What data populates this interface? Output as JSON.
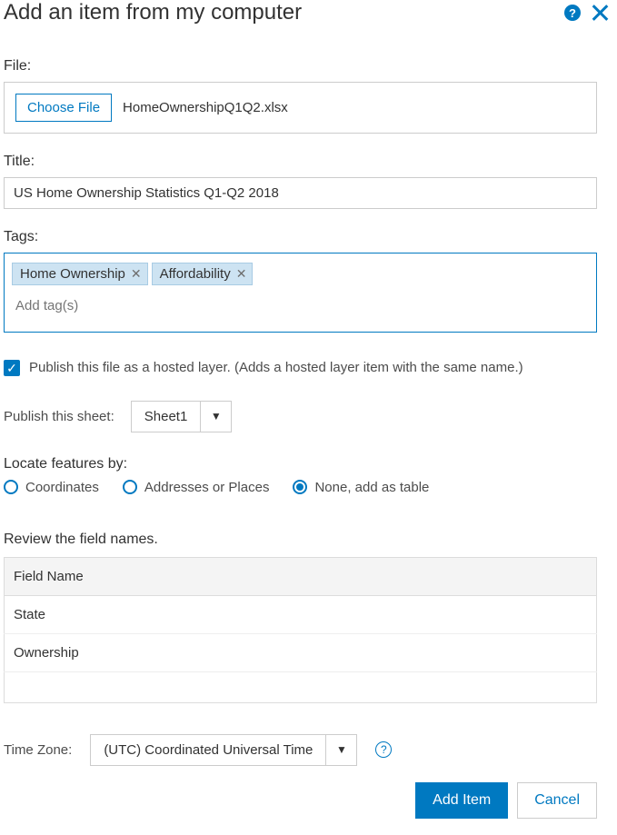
{
  "dialog": {
    "title": "Add an item from my computer"
  },
  "file": {
    "label": "File:",
    "choose_label": "Choose File",
    "filename": "HomeOwnershipQ1Q2.xlsx"
  },
  "title_field": {
    "label": "Title:",
    "value": "US Home Ownership Statistics Q1-Q2 2018"
  },
  "tags": {
    "label": "Tags:",
    "items": [
      "Home Ownership",
      "Affordability"
    ],
    "placeholder": "Add tag(s)"
  },
  "publish_checkbox": {
    "checked": true,
    "text": "Publish this file as a hosted layer. (Adds a hosted layer item with the same name.)"
  },
  "publish_sheet": {
    "label": "Publish this sheet:",
    "selected": "Sheet1"
  },
  "locate": {
    "label": "Locate features by:",
    "options": [
      {
        "label": "Coordinates",
        "selected": false
      },
      {
        "label": "Addresses or Places",
        "selected": false
      },
      {
        "label": "None, add as table",
        "selected": true
      }
    ]
  },
  "review": {
    "label": "Review the field names.",
    "header": "Field Name",
    "rows": [
      "State",
      "Ownership"
    ]
  },
  "timezone": {
    "label": "Time Zone:",
    "selected": "(UTC) Coordinated Universal Time"
  },
  "footer": {
    "primary": "Add Item",
    "secondary": "Cancel"
  },
  "colors": {
    "accent": "#0079c1",
    "border": "#cccccc",
    "text": "#323232",
    "tag_bg": "#cde3f2",
    "tag_border": "#a8cbe4",
    "table_header_bg": "#f4f4f4"
  }
}
